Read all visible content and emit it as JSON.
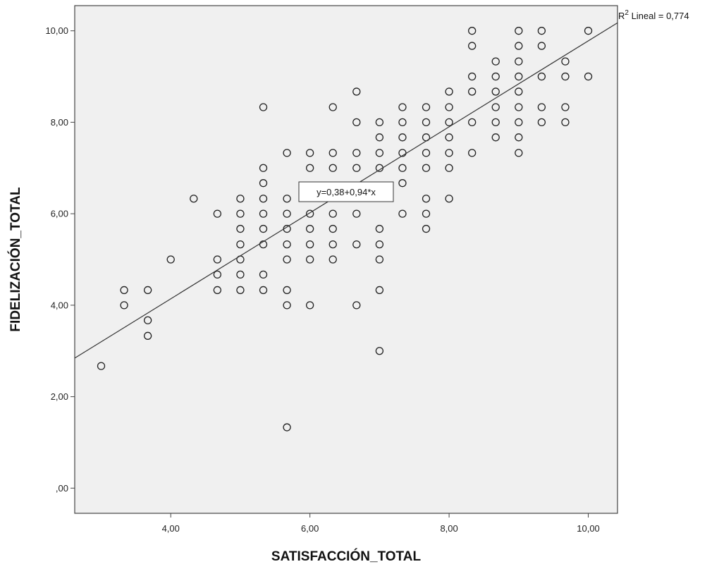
{
  "chart_data": {
    "type": "scatter",
    "xlabel": "SATISFACCIÓN_TOTAL",
    "ylabel": "FIDELIZACIÓN_TOTAL",
    "xlim": [
      2.62,
      10.42
    ],
    "ylim": [
      -0.55,
      10.55
    ],
    "x_ticks": [
      4,
      6,
      8,
      10
    ],
    "x_tick_labels": [
      "4,00",
      "6,00",
      "8,00",
      "10,00"
    ],
    "y_ticks": [
      0,
      2,
      4,
      6,
      8,
      10
    ],
    "y_tick_labels": [
      ",00",
      "2,00",
      "4,00",
      "6,00",
      "8,00",
      "10,00"
    ],
    "grid": false,
    "plot_background": "#f0f0f0",
    "marker": "open-circle",
    "fit_line": {
      "intercept": 0.38,
      "slope": 0.94,
      "label": "y=0,38+0,94*x"
    },
    "r2_label": {
      "prefix": "R",
      "superscript": "2",
      "text": " Lineal = 0,774"
    },
    "points": [
      [
        3.0,
        2.67
      ],
      [
        3.33,
        4.0
      ],
      [
        3.33,
        4.33
      ],
      [
        3.67,
        3.33
      ],
      [
        3.67,
        3.67
      ],
      [
        3.67,
        4.33
      ],
      [
        4.0,
        5.0
      ],
      [
        4.33,
        6.33
      ],
      [
        4.67,
        4.33
      ],
      [
        4.67,
        4.67
      ],
      [
        4.67,
        5.0
      ],
      [
        4.67,
        6.0
      ],
      [
        5.0,
        4.33
      ],
      [
        5.0,
        4.67
      ],
      [
        5.0,
        5.0
      ],
      [
        5.0,
        5.33
      ],
      [
        5.0,
        5.67
      ],
      [
        5.0,
        6.0
      ],
      [
        5.0,
        6.33
      ],
      [
        5.33,
        4.33
      ],
      [
        5.33,
        4.67
      ],
      [
        5.33,
        5.33
      ],
      [
        5.33,
        5.67
      ],
      [
        5.33,
        6.0
      ],
      [
        5.33,
        6.33
      ],
      [
        5.33,
        6.67
      ],
      [
        5.33,
        7.0
      ],
      [
        5.33,
        8.33
      ],
      [
        5.67,
        1.33
      ],
      [
        5.67,
        4.0
      ],
      [
        5.67,
        4.33
      ],
      [
        5.67,
        5.0
      ],
      [
        5.67,
        5.33
      ],
      [
        5.67,
        5.67
      ],
      [
        5.67,
        6.0
      ],
      [
        5.67,
        6.33
      ],
      [
        5.67,
        7.33
      ],
      [
        6.0,
        4.0
      ],
      [
        6.0,
        5.0
      ],
      [
        6.0,
        5.33
      ],
      [
        6.0,
        5.67
      ],
      [
        6.0,
        6.0
      ],
      [
        6.0,
        7.0
      ],
      [
        6.0,
        7.33
      ],
      [
        6.33,
        5.0
      ],
      [
        6.33,
        5.33
      ],
      [
        6.33,
        5.67
      ],
      [
        6.33,
        6.0
      ],
      [
        6.33,
        7.0
      ],
      [
        6.33,
        7.33
      ],
      [
        6.33,
        8.33
      ],
      [
        6.67,
        4.0
      ],
      [
        6.67,
        5.33
      ],
      [
        6.67,
        6.0
      ],
      [
        6.67,
        7.0
      ],
      [
        6.67,
        7.33
      ],
      [
        6.67,
        8.0
      ],
      [
        6.67,
        8.67
      ],
      [
        7.0,
        3.0
      ],
      [
        7.0,
        4.33
      ],
      [
        7.0,
        5.0
      ],
      [
        7.0,
        5.33
      ],
      [
        7.0,
        5.67
      ],
      [
        7.0,
        7.0
      ],
      [
        7.0,
        7.33
      ],
      [
        7.0,
        7.67
      ],
      [
        7.0,
        8.0
      ],
      [
        7.33,
        6.0
      ],
      [
        7.33,
        6.67
      ],
      [
        7.33,
        7.0
      ],
      [
        7.33,
        7.33
      ],
      [
        7.33,
        7.67
      ],
      [
        7.33,
        8.0
      ],
      [
        7.33,
        8.33
      ],
      [
        7.67,
        5.67
      ],
      [
        7.67,
        6.0
      ],
      [
        7.67,
        6.33
      ],
      [
        7.67,
        7.0
      ],
      [
        7.67,
        7.33
      ],
      [
        7.67,
        7.67
      ],
      [
        7.67,
        8.0
      ],
      [
        7.67,
        8.33
      ],
      [
        8.0,
        6.33
      ],
      [
        8.0,
        7.0
      ],
      [
        8.0,
        7.33
      ],
      [
        8.0,
        7.67
      ],
      [
        8.0,
        8.0
      ],
      [
        8.0,
        8.33
      ],
      [
        8.0,
        8.67
      ],
      [
        8.33,
        7.33
      ],
      [
        8.33,
        8.0
      ],
      [
        8.33,
        8.67
      ],
      [
        8.33,
        9.0
      ],
      [
        8.33,
        9.67
      ],
      [
        8.33,
        10.0
      ],
      [
        8.67,
        7.67
      ],
      [
        8.67,
        8.0
      ],
      [
        8.67,
        8.33
      ],
      [
        8.67,
        8.67
      ],
      [
        8.67,
        9.0
      ],
      [
        8.67,
        9.33
      ],
      [
        9.0,
        7.33
      ],
      [
        9.0,
        7.67
      ],
      [
        9.0,
        8.0
      ],
      [
        9.0,
        8.33
      ],
      [
        9.0,
        8.67
      ],
      [
        9.0,
        9.0
      ],
      [
        9.0,
        9.33
      ],
      [
        9.0,
        9.67
      ],
      [
        9.0,
        10.0
      ],
      [
        9.33,
        8.0
      ],
      [
        9.33,
        8.33
      ],
      [
        9.33,
        9.0
      ],
      [
        9.33,
        9.67
      ],
      [
        9.33,
        10.0
      ],
      [
        9.67,
        8.0
      ],
      [
        9.67,
        8.33
      ],
      [
        9.67,
        9.0
      ],
      [
        9.67,
        9.33
      ],
      [
        10.0,
        9.0
      ],
      [
        10.0,
        10.0
      ]
    ]
  }
}
